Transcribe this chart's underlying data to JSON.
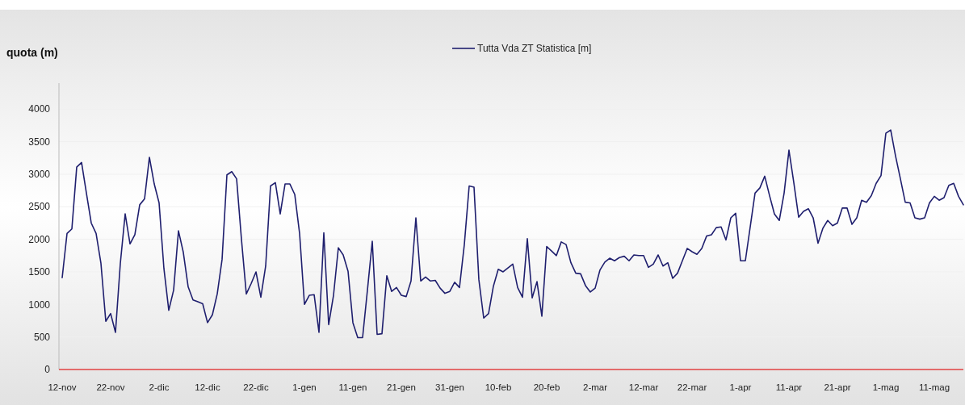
{
  "chart_data": {
    "type": "line",
    "ylabel": "quota (m)",
    "categories": [
      "12-nov",
      null,
      null,
      null,
      null,
      null,
      null,
      null,
      null,
      null,
      "22-nov",
      null,
      null,
      null,
      null,
      null,
      null,
      null,
      null,
      null,
      "2-dic",
      null,
      null,
      null,
      null,
      null,
      null,
      null,
      null,
      null,
      "12-dic",
      null,
      null,
      null,
      null,
      null,
      null,
      null,
      null,
      null,
      "22-dic",
      null,
      null,
      null,
      null,
      null,
      null,
      null,
      null,
      null,
      "1-gen",
      null,
      null,
      null,
      null,
      null,
      null,
      null,
      null,
      null,
      "11-gen",
      null,
      null,
      null,
      null,
      null,
      null,
      null,
      null,
      null,
      "21-gen",
      null,
      null,
      null,
      null,
      null,
      null,
      null,
      null,
      null,
      "31-gen",
      null,
      null,
      null,
      null,
      null,
      null,
      null,
      null,
      null,
      "10-feb",
      null,
      null,
      null,
      null,
      null,
      null,
      null,
      null,
      null,
      "20-feb",
      null,
      null,
      null,
      null,
      null,
      null,
      null,
      null,
      null,
      "2-mar",
      null,
      null,
      null,
      null,
      null,
      null,
      null,
      null,
      null,
      "12-mar",
      null,
      null,
      null,
      null,
      null,
      null,
      null,
      null,
      null,
      "22-mar",
      null,
      null,
      null,
      null,
      null,
      null,
      null,
      null,
      null,
      "1-apr",
      null,
      null,
      null,
      null,
      null,
      null,
      null,
      null,
      null,
      "11-apr",
      null,
      null,
      null,
      null,
      null,
      null,
      null,
      null,
      null,
      "21-apr",
      null,
      null,
      null,
      null,
      null,
      null,
      null,
      null,
      null,
      "1-mag",
      null,
      null,
      null,
      null,
      null,
      null,
      null,
      null,
      null,
      "11-mag",
      null,
      null,
      null,
      null,
      null,
      null
    ],
    "series": [
      {
        "name": "Tutta Vda ZT Statistica [m]",
        "color": "#1f1f6e",
        "values": [
          1410,
          2090,
          2160,
          3110,
          3180,
          2710,
          2250,
          2090,
          1630,
          740,
          860,
          570,
          1630,
          2390,
          1930,
          2070,
          2530,
          2620,
          3260,
          2850,
          2560,
          1550,
          910,
          1220,
          2130,
          1800,
          1270,
          1070,
          1040,
          1010,
          720,
          840,
          1160,
          1690,
          2990,
          3040,
          2930,
          2000,
          1160,
          1320,
          1500,
          1110,
          1590,
          2820,
          2870,
          2390,
          2850,
          2850,
          2690,
          2090,
          1000,
          1140,
          1150,
          570,
          2100,
          690,
          1140,
          1870,
          1760,
          1510,
          720,
          490,
          490,
          1220,
          1970,
          540,
          550,
          1440,
          1200,
          1260,
          1140,
          1120,
          1360,
          2330,
          1360,
          1420,
          1360,
          1370,
          1250,
          1170,
          1200,
          1340,
          1260,
          1920,
          2820,
          2800,
          1380,
          790,
          860,
          1280,
          1540,
          1500,
          1560,
          1620,
          1260,
          1110,
          2010,
          1100,
          1350,
          820,
          1890,
          1820,
          1750,
          1960,
          1920,
          1640,
          1480,
          1470,
          1290,
          1190,
          1250,
          1530,
          1650,
          1710,
          1670,
          1720,
          1740,
          1670,
          1760,
          1750,
          1750,
          1570,
          1620,
          1760,
          1590,
          1640,
          1400,
          1480,
          1670,
          1860,
          1810,
          1770,
          1860,
          2050,
          2070,
          2180,
          2190,
          1990,
          2330,
          2400,
          1670,
          1670,
          2190,
          2710,
          2790,
          2970,
          2670,
          2390,
          2290,
          2710,
          3370,
          2870,
          2340,
          2430,
          2470,
          2330,
          1940,
          2170,
          2290,
          2210,
          2250,
          2480,
          2480,
          2230,
          2330,
          2600,
          2570,
          2670,
          2860,
          2980,
          3630,
          3680,
          3280,
          2930,
          2570,
          2560,
          2330,
          2310,
          2330,
          2560,
          2660,
          2600,
          2640,
          2830,
          2860,
          2660,
          2530
        ]
      }
    ],
    "ylim": [
      0,
      4400
    ],
    "yticks": [
      0,
      500,
      1000,
      1500,
      2000,
      2500,
      3000,
      3500,
      4000
    ],
    "grid": "y",
    "legend": "top",
    "marker": "none",
    "line_style": "solid"
  }
}
